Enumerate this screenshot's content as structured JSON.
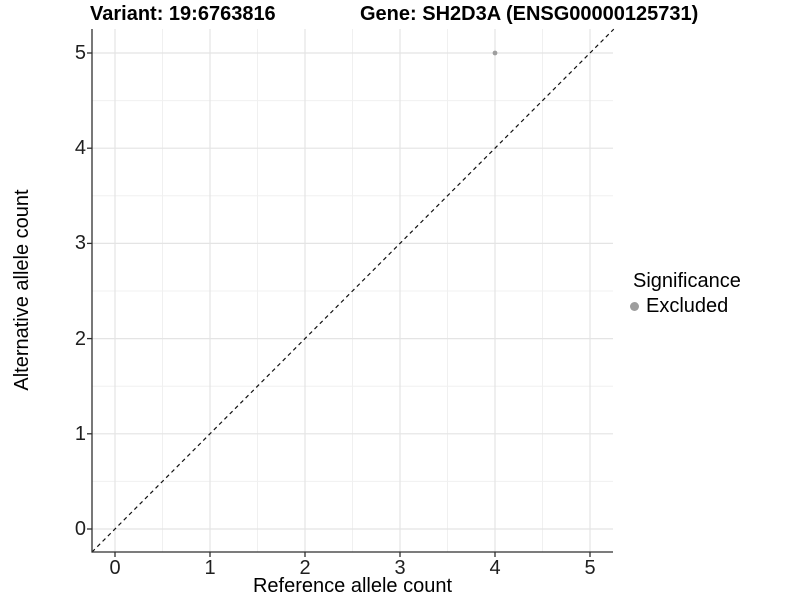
{
  "header": {
    "variant_title": "Variant: 19:6763816",
    "gene_title": "Gene: SH2D3A (ENSG00000125731)"
  },
  "chart_data": {
    "type": "scatter",
    "title_left": "Variant: 19:6763816",
    "title_right": "Gene: SH2D3A (ENSG00000125731)",
    "xlabel": "Reference allele count",
    "ylabel": "Alternative allele count",
    "xlim": [
      -0.25,
      5.25
    ],
    "ylim": [
      -0.25,
      5.25
    ],
    "x_ticks": [
      0,
      1,
      2,
      3,
      4,
      5
    ],
    "y_ticks": [
      0,
      1,
      2,
      3,
      4,
      5
    ],
    "x_minor_ticks": [
      0.5,
      1.5,
      2.5,
      3.5,
      4.5
    ],
    "y_minor_ticks": [
      0.5,
      1.5,
      2.5,
      3.5,
      4.5
    ],
    "grid": "major+minor",
    "points": [
      {
        "x": 4,
        "y": 5,
        "series": "Excluded"
      }
    ],
    "identity_line": {
      "style": "dashed",
      "slope": 1,
      "intercept": 0,
      "x_start": -0.25,
      "x_end": 5.25
    },
    "legend": {
      "title": "Significance",
      "position": "right",
      "entries": [
        {
          "label": "Excluded",
          "color": "#9e9e9e",
          "marker": "circle"
        }
      ]
    },
    "colors": {
      "point": "#9e9e9e",
      "grid_major": "#e4e4e4",
      "grid_minor": "#f0f0f0",
      "axis_line": "#2f2f2f",
      "tick_mark": "#2f2f2f",
      "identity_line": "#111111",
      "background": "#ffffff"
    }
  }
}
